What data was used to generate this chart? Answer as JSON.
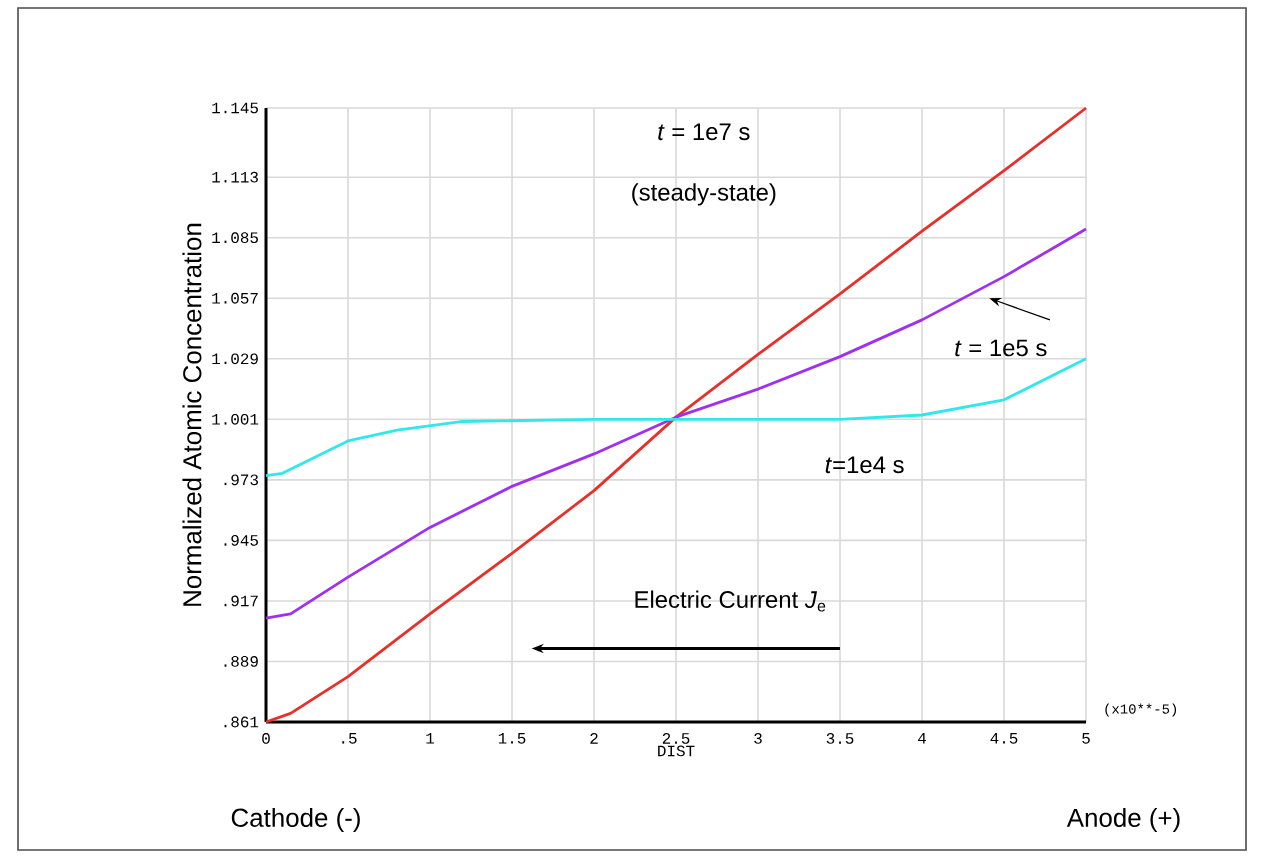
{
  "chart_data": {
    "type": "line",
    "xlabel": "DIST",
    "ylabel": "Normalized Atomic Concentration",
    "xlim": [
      0,
      5
    ],
    "ylim": [
      0.861,
      1.145
    ],
    "xticks": [
      0,
      {
        "value": 0.5,
        "label": ".5"
      },
      1,
      1.5,
      2,
      2.5,
      3,
      3.5,
      4,
      4.5,
      5
    ],
    "yticks": [
      {
        "value": 0.861,
        "label": ".861"
      },
      {
        "value": 0.889,
        "label": ".889"
      },
      {
        "value": 0.917,
        "label": ".917"
      },
      {
        "value": 0.945,
        "label": ".945"
      },
      {
        "value": 0.973,
        "label": ".973"
      },
      1.001,
      1.029,
      1.057,
      1.085,
      1.113,
      1.145
    ],
    "grid": true,
    "marker": "none",
    "line_style": "solid",
    "series": [
      {
        "color": "#e8302a",
        "x": [
          0,
          0.15,
          0.5,
          1,
          1.5,
          2,
          2.5,
          3,
          3.5,
          4,
          4.5,
          5
        ],
        "values": [
          0.861,
          0.865,
          0.882,
          0.911,
          0.939,
          0.968,
          1.002,
          1.031,
          1.059,
          1.088,
          1.116,
          1.145
        ]
      },
      {
        "color": "#a030f0",
        "x": [
          0,
          0.15,
          0.5,
          1,
          1.5,
          2,
          2.5,
          3,
          3.5,
          4,
          4.5,
          5
        ],
        "values": [
          0.909,
          0.911,
          0.928,
          0.951,
          0.97,
          0.985,
          1.002,
          1.015,
          1.03,
          1.047,
          1.067,
          1.089
        ]
      },
      {
        "color": "#30e8e8",
        "x": [
          0,
          0.1,
          0.5,
          0.8,
          1.2,
          2,
          3,
          3.5,
          4,
          4.5,
          5
        ],
        "values": [
          0.975,
          0.976,
          0.991,
          0.996,
          1.0,
          1.001,
          1.001,
          1.001,
          1.003,
          1.01,
          1.029
        ]
      }
    ],
    "annotations": [
      "*t* = 1e7 s",
      "(steady-state)",
      "*t* = 1e5 s",
      "*t*=1e4 s",
      "Electric Current *J*$_{e}$",
      "(x10**-5)",
      "Cathode (-)",
      "Anode (+)"
    ]
  }
}
